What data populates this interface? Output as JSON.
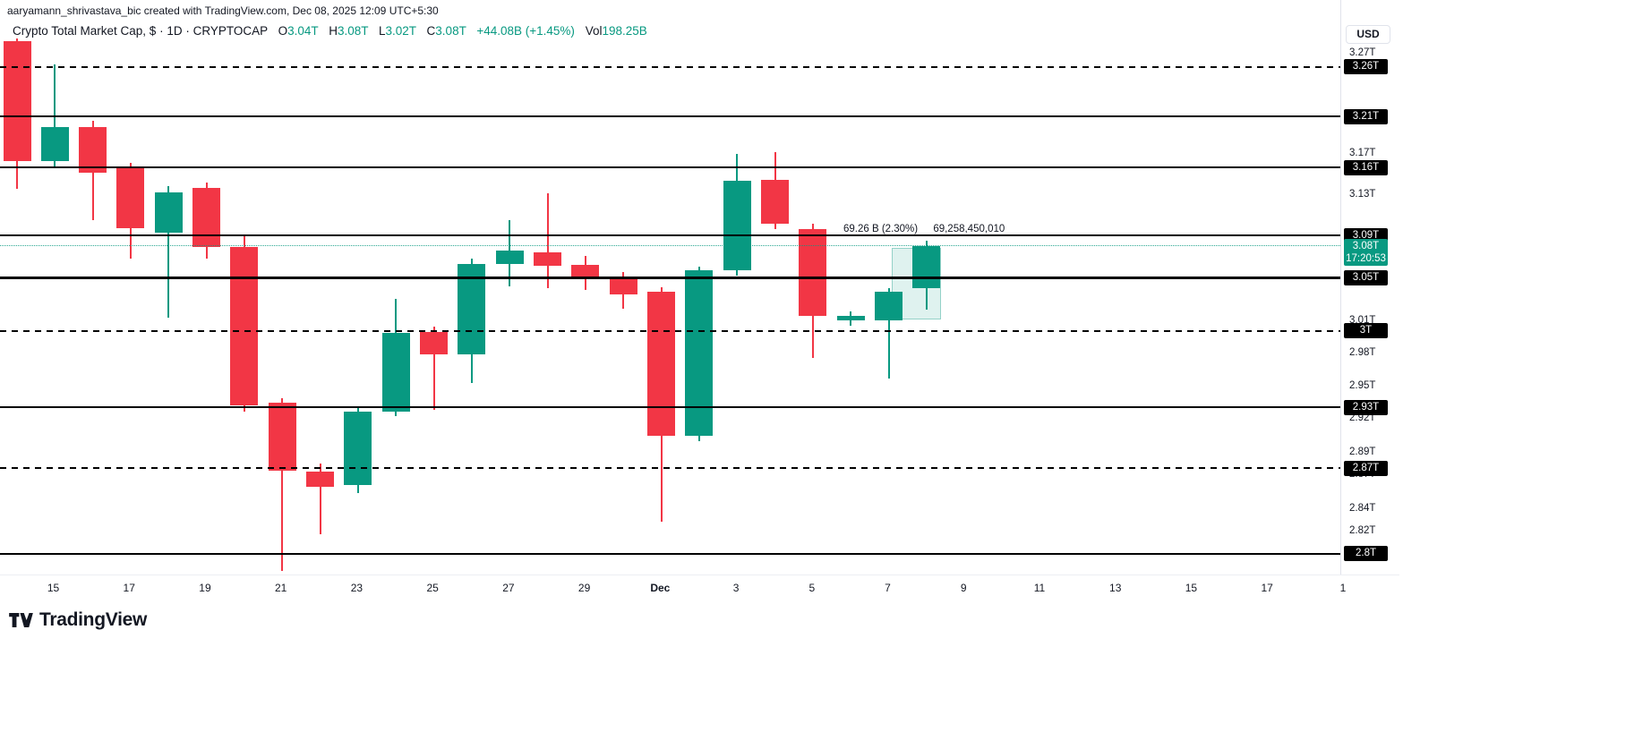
{
  "attribution": "aaryamann_shrivastava_bic created with TradingView.com, Dec 08, 2025 12:09 UTC+5:30",
  "legend": {
    "symbol": "Crypto Total Market Cap, $ · 1D · CRYPTOCAP",
    "o_label": "O",
    "o_value": "3.04T",
    "h_label": "H",
    "h_value": "3.08T",
    "l_label": "L",
    "l_value": "3.02T",
    "c_label": "C",
    "c_value": "3.08T",
    "change": "+44.08B (+1.45%)",
    "vol_label": "Vol",
    "vol_value": "198.25B"
  },
  "price_axis": {
    "currency": "USD",
    "current": {
      "price": 3.08,
      "label": "3.08T",
      "countdown": "17:20:53"
    }
  },
  "footer": {
    "brand": "TradingView"
  },
  "colors": {
    "up": "#089981",
    "down": "#f23645",
    "line": "#000000",
    "text": "#131722",
    "badge_text": "#ffffff",
    "current_badge_bg": "#089981"
  },
  "chart_data": {
    "type": "candlestick",
    "symbol": "Crypto Total Market Cap",
    "interval": "1D",
    "exchange": "CRYPTOCAP",
    "scale": "log",
    "unit": "T (trillions USD)",
    "price_range": {
      "top": 3.324,
      "bottom": 2.782
    },
    "ohlc_legend": {
      "open": "3.04T",
      "high": "3.08T",
      "low": "3.02T",
      "close": "3.08T",
      "change": "+44.08B (+1.45%)",
      "volume": "198.25B"
    },
    "current_price": 3.08,
    "time_labels": [
      "15",
      "17",
      "19",
      "21",
      "23",
      "25",
      "27",
      "29",
      "Dec",
      "3",
      "5",
      "7",
      "9",
      "11",
      "13",
      "15",
      "17",
      "1"
    ],
    "ticks": [
      {
        "price": 3.27,
        "label": "3.27T"
      },
      {
        "price": 3.17,
        "label": "3.17T"
      },
      {
        "price": 3.13,
        "label": "3.13T"
      },
      {
        "price": 3.01,
        "label": "3.01T"
      },
      {
        "price": 2.98,
        "label": "2.98T"
      },
      {
        "price": 2.95,
        "label": "2.95T"
      },
      {
        "price": 2.92,
        "label": "2.92T"
      },
      {
        "price": 2.89,
        "label": "2.89T"
      },
      {
        "price": 2.87,
        "label": "2.87T"
      },
      {
        "price": 2.84,
        "label": "2.84T"
      },
      {
        "price": 2.82,
        "label": "2.82T"
      }
    ],
    "levels": [
      {
        "price": 3.256,
        "label": "3.26T",
        "style": "dashed"
      },
      {
        "price": 3.206,
        "label": "3.21T",
        "style": "solid"
      },
      {
        "price": 3.156,
        "label": "3.16T",
        "style": "solid"
      },
      {
        "price": 3.09,
        "label": "3.09T",
        "style": "solid"
      },
      {
        "price": 3.05,
        "label": "3.05T",
        "style": "solid",
        "thick": true
      },
      {
        "price": 3.0,
        "label": "3T",
        "style": "dashed"
      },
      {
        "price": 2.93,
        "label": "2.93T",
        "style": "solid"
      },
      {
        "price": 2.875,
        "label": "2.87T",
        "style": "dashed"
      },
      {
        "price": 2.8,
        "label": "2.8T",
        "style": "solid"
      }
    ],
    "candles": [
      {
        "o": 3.282,
        "h": 3.285,
        "l": 3.135,
        "c": 3.162
      },
      {
        "o": 3.162,
        "h": 3.258,
        "l": 3.156,
        "c": 3.196
      },
      {
        "o": 3.196,
        "h": 3.202,
        "l": 3.105,
        "c": 3.151
      },
      {
        "o": 3.156,
        "h": 3.16,
        "l": 3.068,
        "c": 3.097
      },
      {
        "o": 3.093,
        "h": 3.138,
        "l": 3.012,
        "c": 3.132
      },
      {
        "o": 3.136,
        "h": 3.141,
        "l": 3.068,
        "c": 3.079
      },
      {
        "o": 3.079,
        "h": 3.09,
        "l": 2.926,
        "c": 2.932
      },
      {
        "o": 2.934,
        "h": 2.938,
        "l": 2.785,
        "c": 2.873
      },
      {
        "o": 2.872,
        "h": 2.879,
        "l": 2.817,
        "c": 2.859
      },
      {
        "o": 2.86,
        "h": 2.93,
        "l": 2.853,
        "c": 2.926
      },
      {
        "o": 2.926,
        "h": 3.03,
        "l": 2.922,
        "c": 2.998
      },
      {
        "o": 2.999,
        "h": 3.004,
        "l": 2.928,
        "c": 2.978
      },
      {
        "o": 2.978,
        "h": 3.068,
        "l": 2.952,
        "c": 3.063
      },
      {
        "o": 3.063,
        "h": 3.105,
        "l": 3.042,
        "c": 3.076
      },
      {
        "o": 3.074,
        "h": 3.131,
        "l": 3.04,
        "c": 3.061
      },
      {
        "o": 3.062,
        "h": 3.071,
        "l": 3.038,
        "c": 3.049
      },
      {
        "o": 3.049,
        "h": 3.055,
        "l": 3.021,
        "c": 3.034
      },
      {
        "o": 3.037,
        "h": 3.041,
        "l": 2.828,
        "c": 2.904
      },
      {
        "o": 2.904,
        "h": 3.06,
        "l": 2.899,
        "c": 3.057
      },
      {
        "o": 3.057,
        "h": 3.169,
        "l": 3.052,
        "c": 3.143
      },
      {
        "o": 3.144,
        "h": 3.171,
        "l": 3.096,
        "c": 3.101
      },
      {
        "o": 3.096,
        "h": 3.101,
        "l": 2.975,
        "c": 3.014
      },
      {
        "o": 3.01,
        "h": 3.018,
        "l": 3.005,
        "c": 3.014
      },
      {
        "o": 3.01,
        "h": 3.04,
        "l": 2.956,
        "c": 3.037
      },
      {
        "o": 3.04,
        "h": 3.085,
        "l": 3.02,
        "c": 3.08
      }
    ],
    "annotation": {
      "measure": "69.26 B (2.30%)",
      "value": "69,258,450,010"
    },
    "highlight_zone": {
      "price_top": 3.078,
      "price_bottom": 3.012
    }
  }
}
